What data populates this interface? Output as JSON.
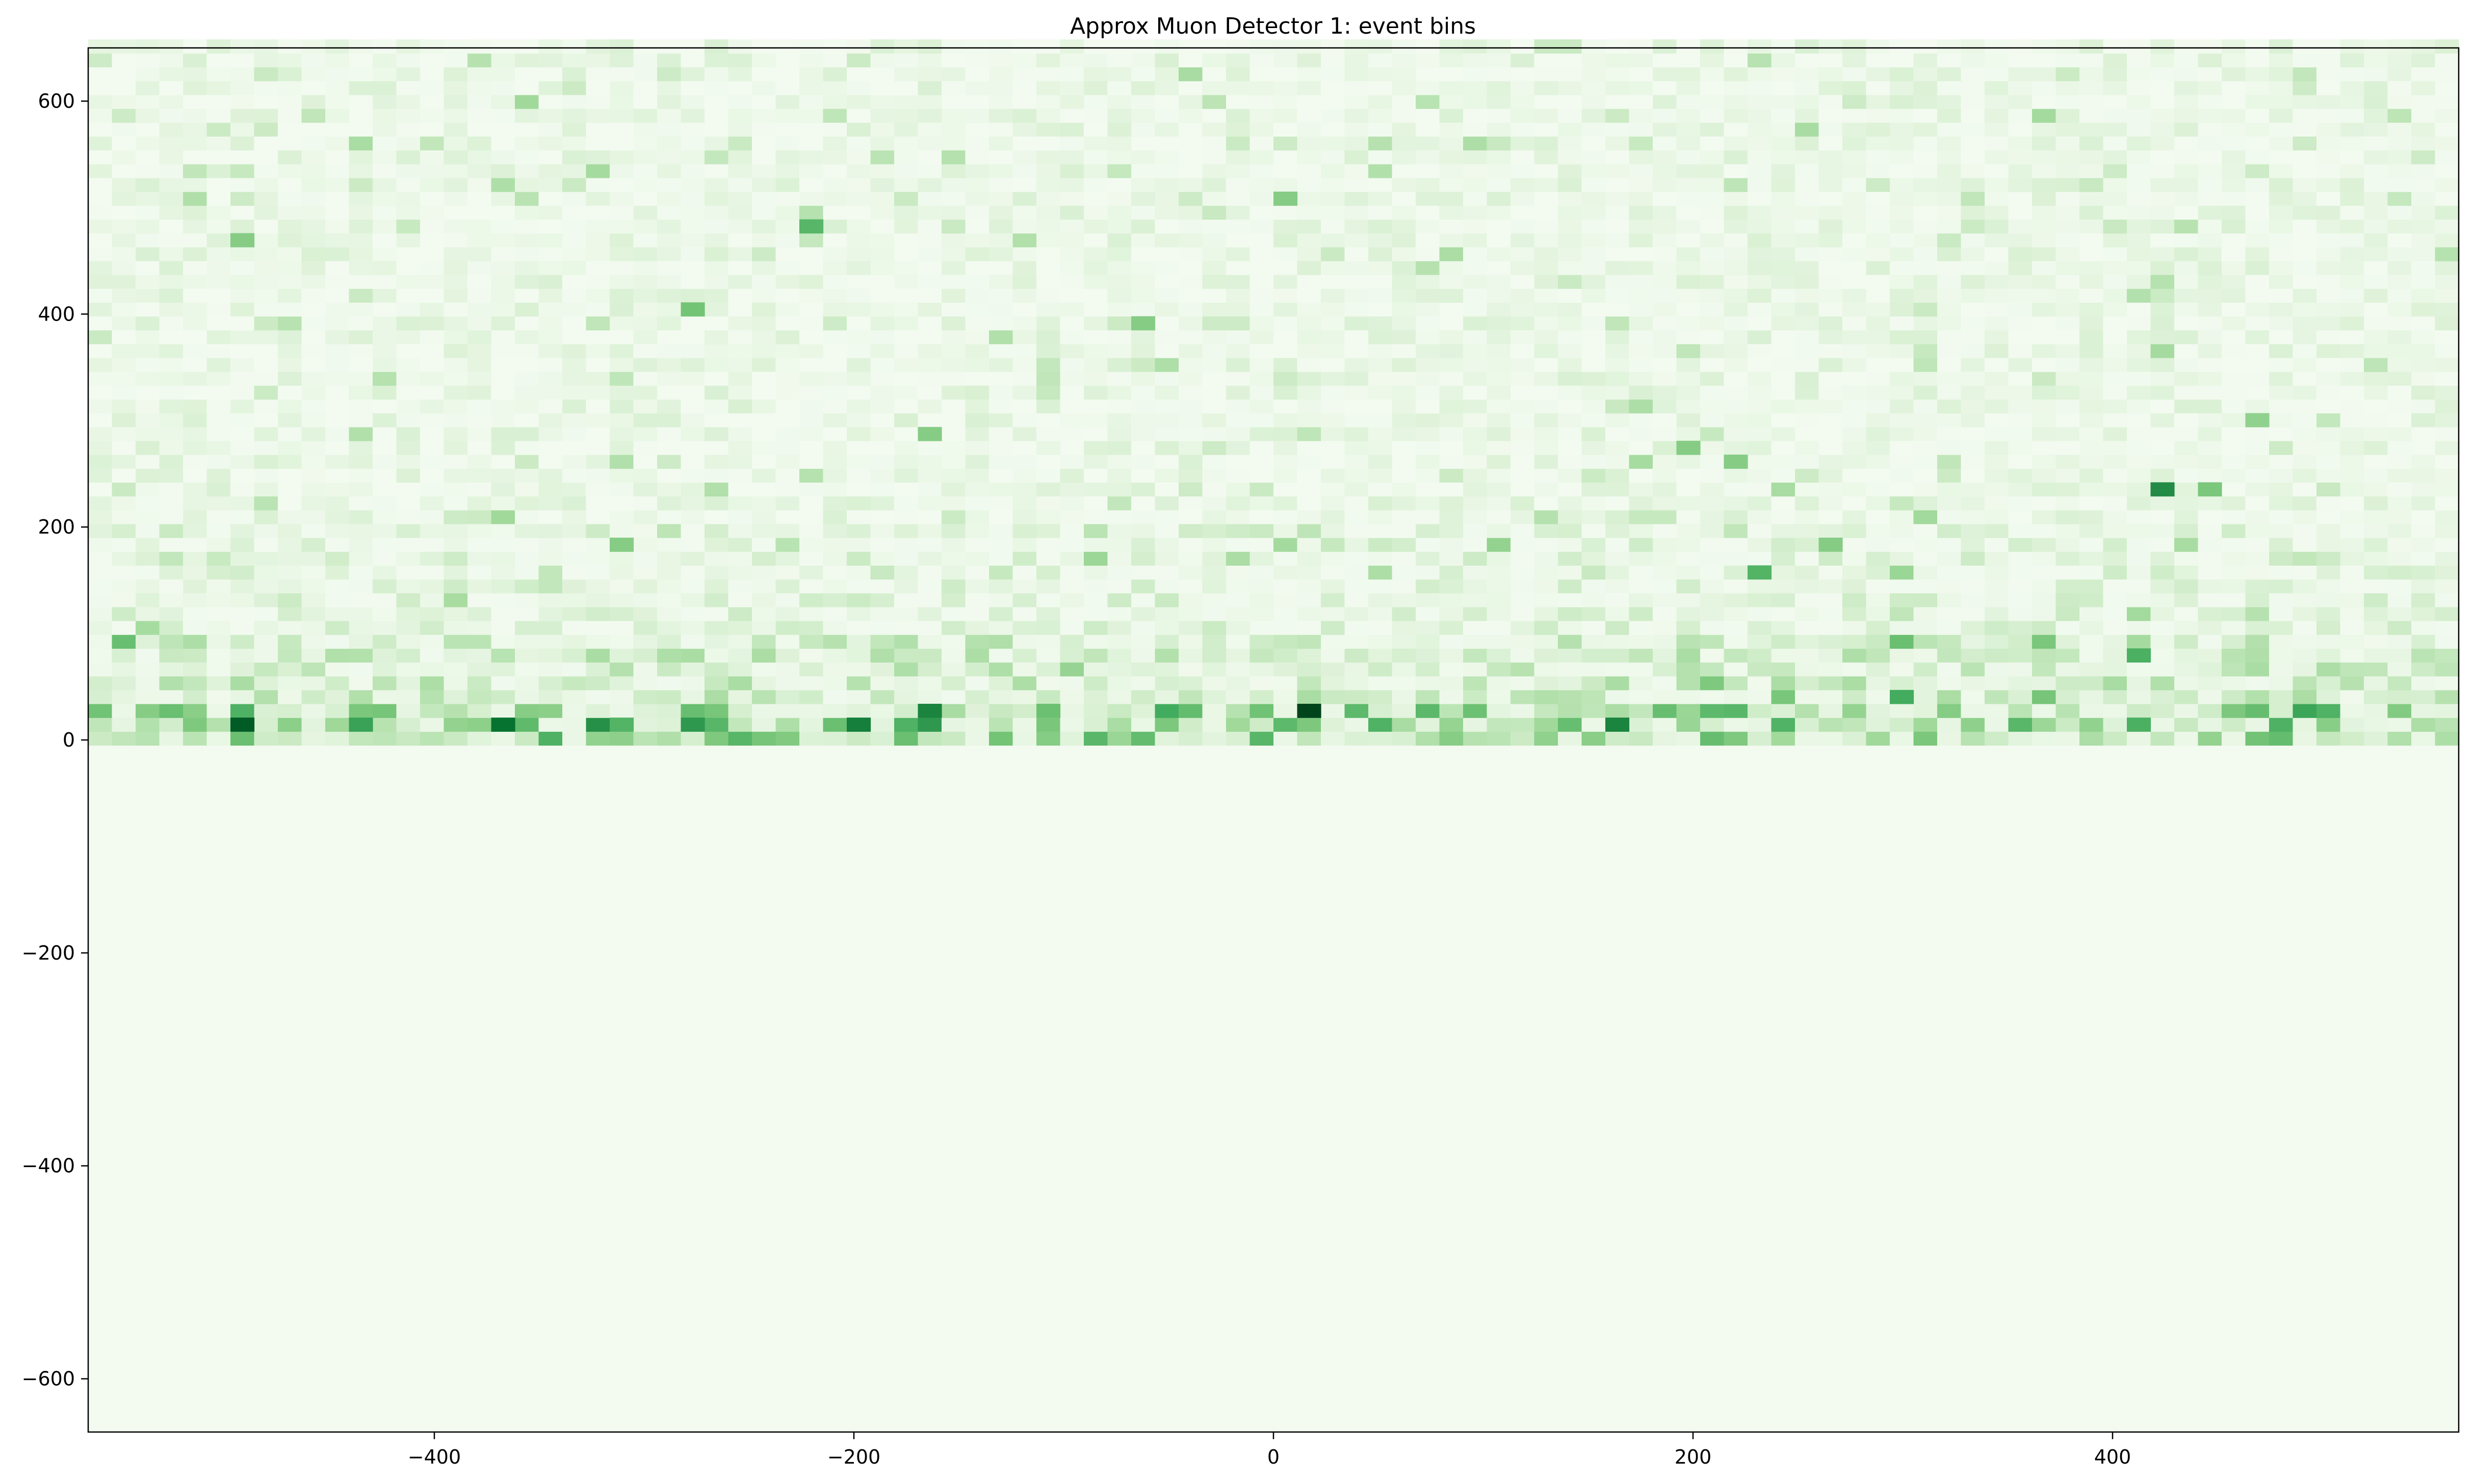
{
  "chart_data": {
    "type": "heatmap",
    "title": "Approx Muon Detector 1: event bins",
    "xlabel": "",
    "ylabel": "",
    "xlim": [
      -565,
      565
    ],
    "ylim": [
      -650,
      650
    ],
    "colormap": "Greens",
    "grid": false,
    "x_ticks": [
      {
        "value": -400,
        "label": "−400"
      },
      {
        "value": -200,
        "label": "−200"
      },
      {
        "value": 0,
        "label": "0"
      },
      {
        "value": 200,
        "label": "200"
      },
      {
        "value": 400,
        "label": "400"
      }
    ],
    "y_ticks": [
      {
        "value": 600,
        "label": "600"
      },
      {
        "value": 400,
        "label": "400"
      },
      {
        "value": 200,
        "label": "200"
      },
      {
        "value": 0,
        "label": "0"
      },
      {
        "value": -200,
        "label": "−200"
      },
      {
        "value": -400,
        "label": "−400"
      },
      {
        "value": -600,
        "label": "−600"
      }
    ],
    "bins": {
      "x_bin_width": 11.3,
      "y_bin_width": 13,
      "populated_y_range": [
        -5,
        650
      ],
      "empty_y_range": [
        -650,
        -5
      ],
      "background_level": 0.03
    },
    "hot_cells": [
      {
        "x": -491,
        "y": 13,
        "v": 0.93
      },
      {
        "x": -366,
        "y": 13,
        "v": 0.85
      },
      {
        "x": -194,
        "y": 13,
        "v": 0.8
      },
      {
        "x": -160,
        "y": 26,
        "v": 0.78
      },
      {
        "x": 12,
        "y": 26,
        "v": 1.0
      },
      {
        "x": 160,
        "y": 13,
        "v": 0.78
      },
      {
        "x": 420,
        "y": 234,
        "v": 0.75
      },
      {
        "x": -276,
        "y": 13,
        "v": 0.7
      },
      {
        "x": -432,
        "y": 13,
        "v": 0.66
      },
      {
        "x": -315,
        "y": 13,
        "v": 0.58
      },
      {
        "x": 408,
        "y": 13,
        "v": 0.6
      },
      {
        "x": 228,
        "y": 156,
        "v": 0.58
      },
      {
        "x": 412,
        "y": 78,
        "v": 0.6
      },
      {
        "x": 305,
        "y": 39,
        "v": 0.62
      },
      {
        "x": -216,
        "y": 481,
        "v": 0.57
      },
      {
        "x": 10,
        "y": 507,
        "v": 0.45
      },
      {
        "x": -276,
        "y": 403,
        "v": 0.5
      },
      {
        "x": -488,
        "y": 468,
        "v": 0.45
      },
      {
        "x": 468,
        "y": 299,
        "v": 0.42
      },
      {
        "x": -160,
        "y": 286,
        "v": 0.45
      },
      {
        "x": -314,
        "y": 182,
        "v": 0.45
      },
      {
        "x": -57,
        "y": 390,
        "v": 0.45
      },
      {
        "x": 442,
        "y": 234,
        "v": 0.48
      },
      {
        "x": 266,
        "y": 182,
        "v": 0.45
      },
      {
        "x": -105,
        "y": 26,
        "v": 0.52
      },
      {
        "x": 218,
        "y": 260,
        "v": 0.45
      },
      {
        "x": 200,
        "y": 273,
        "v": 0.45
      }
    ]
  }
}
